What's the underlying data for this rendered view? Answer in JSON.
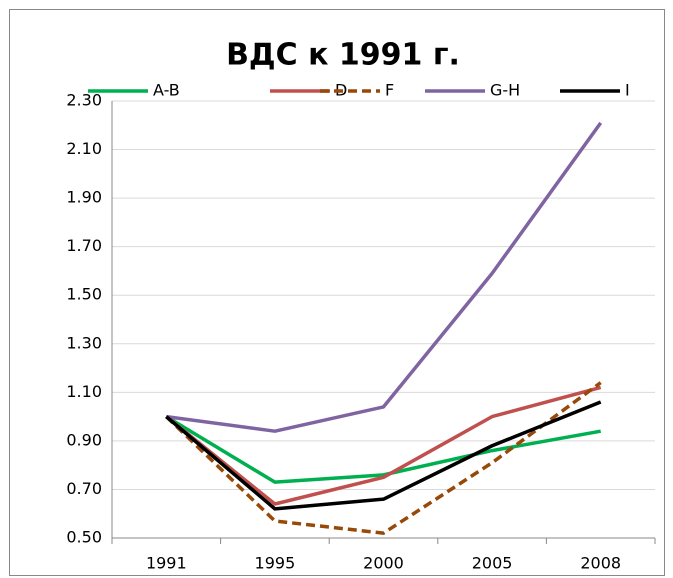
{
  "chart_data": {
    "type": "line",
    "title": "ВДС к 1991 г.",
    "categories": [
      "1991",
      "1995",
      "2000",
      "2005",
      "2008"
    ],
    "series": [
      {
        "name": "A-B",
        "color": "#00b050",
        "values": [
          1.0,
          0.73,
          0.76,
          0.86,
          0.94
        ]
      },
      {
        "name": "D",
        "color": "#c0504d",
        "values": [
          1.0,
          0.64,
          0.75,
          1.0,
          1.12
        ]
      },
      {
        "name": "F",
        "color": "#984807",
        "dashed": true,
        "values": [
          1.0,
          0.57,
          0.52,
          0.81,
          1.14
        ]
      },
      {
        "name": "G-H",
        "color": "#8064a2",
        "values": [
          1.0,
          0.94,
          1.04,
          1.59,
          2.21
        ]
      },
      {
        "name": "I",
        "color": "#000000",
        "values": [
          1.0,
          0.62,
          0.66,
          0.88,
          1.06
        ]
      }
    ],
    "ylim": [
      0.5,
      2.3
    ],
    "yticks": [
      {
        "value": 0.5,
        "label": "0.50"
      },
      {
        "value": 0.7,
        "label": "0.70"
      },
      {
        "value": 0.9,
        "label": "0.90"
      },
      {
        "value": 1.1,
        "label": "1.10"
      },
      {
        "value": 1.3,
        "label": "1.30"
      },
      {
        "value": 1.5,
        "label": "1.50"
      },
      {
        "value": 1.7,
        "label": "1.70"
      },
      {
        "value": 1.9,
        "label": "1.90"
      },
      {
        "value": 2.1,
        "label": "2.10"
      },
      {
        "value": 2.3,
        "label": "2.30"
      }
    ],
    "grid": true,
    "legend": "top"
  }
}
